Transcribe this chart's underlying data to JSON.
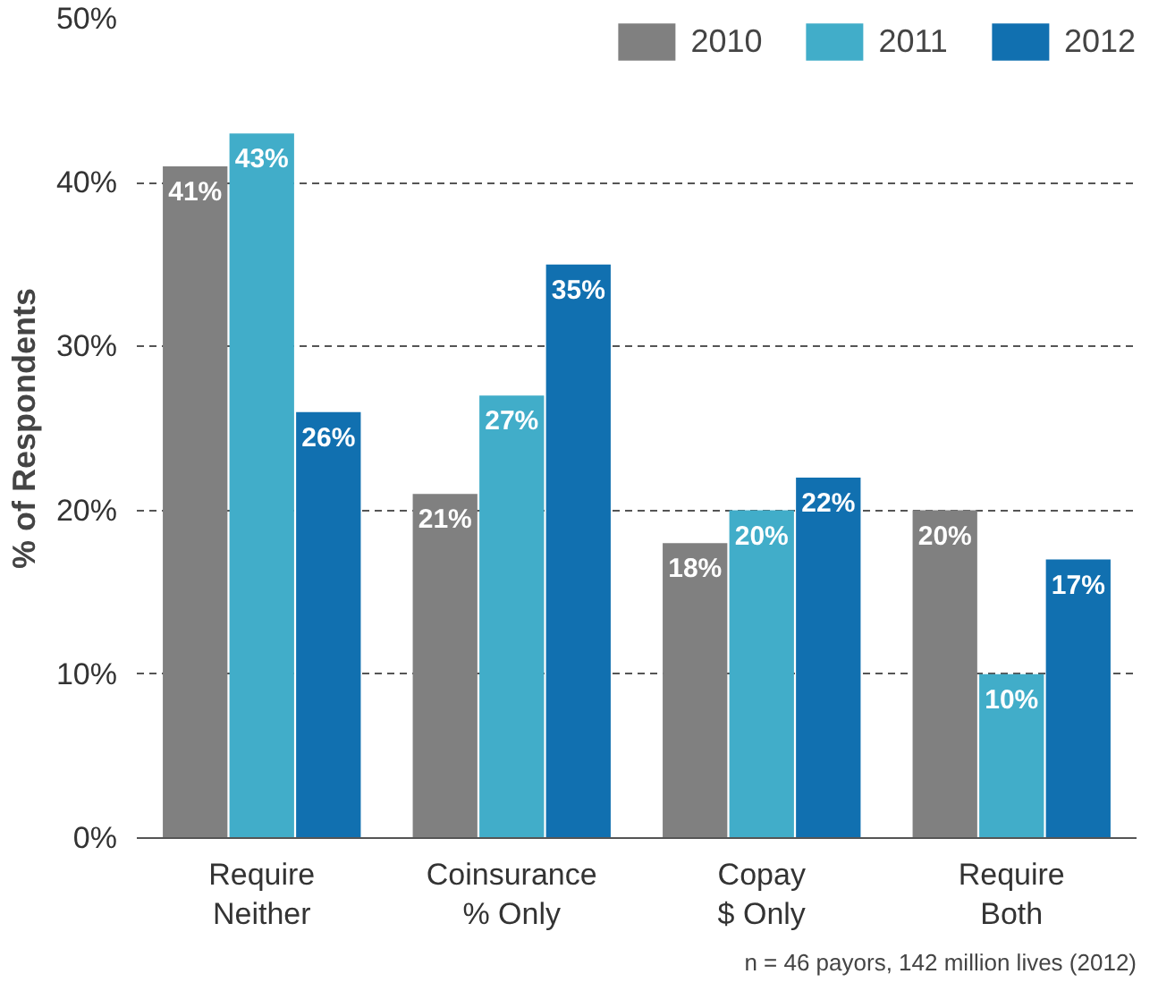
{
  "chart_data": {
    "type": "bar",
    "ylabel": "% of Respondents",
    "categories": [
      "Require\nNeither",
      "Coinsurance\n% Only",
      "Copay\n$ Only",
      "Require\nBoth"
    ],
    "series": [
      {
        "name": "2010",
        "color": "#808080",
        "values": [
          41,
          21,
          18,
          20
        ],
        "value_labels": [
          "41%",
          "21%",
          "18%",
          "20%"
        ]
      },
      {
        "name": "2011",
        "color": "#41adc9",
        "values": [
          43,
          27,
          20,
          10
        ],
        "value_labels": [
          "43%",
          "27%",
          "20%",
          "10%"
        ]
      },
      {
        "name": "2012",
        "color": "#1170b0",
        "values": [
          26,
          35,
          22,
          17
        ],
        "value_labels": [
          "26%",
          "35%",
          "22%",
          "17%"
        ]
      }
    ],
    "ylim": [
      0,
      50
    ],
    "yticks": [
      {
        "value": 0,
        "label": "0%"
      },
      {
        "value": 10,
        "label": "10%"
      },
      {
        "value": 20,
        "label": "20%"
      },
      {
        "value": 30,
        "label": "30%"
      },
      {
        "value": 40,
        "label": "40%"
      },
      {
        "value": 50,
        "label": "50%"
      }
    ],
    "grid": "y",
    "legend": "top",
    "annotations": [
      "n = 46 payors, 142 million lives (2012)"
    ]
  }
}
